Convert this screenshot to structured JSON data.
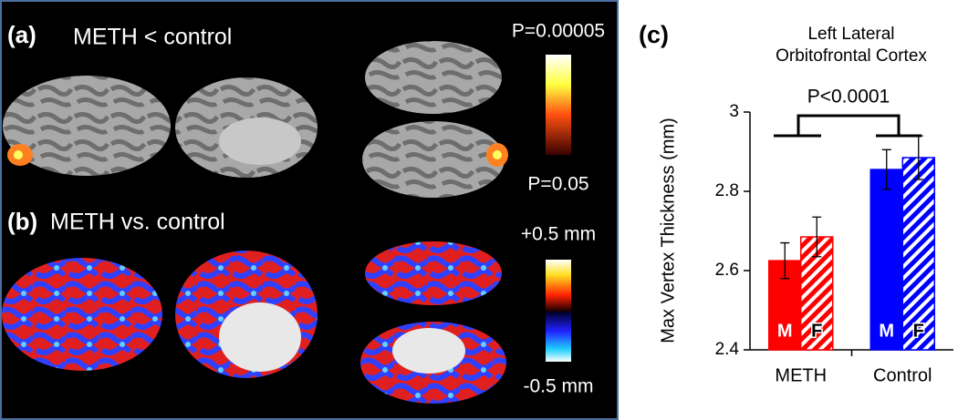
{
  "chart_data": {
    "type": "bar",
    "panel_label": "(c)",
    "title": [
      "Left Lateral",
      "Orbitofrontal Cortex"
    ],
    "y_label": "Max Vertex Thickness (mm)",
    "categories": [
      "METH",
      "Control"
    ],
    "category_colors": [
      "#ff0000",
      "#0000ff"
    ],
    "series": [
      {
        "name": "M",
        "hatch": false,
        "values": [
          2.625,
          2.855
        ],
        "errors": [
          0.045,
          0.05
        ]
      },
      {
        "name": "F",
        "hatch": true,
        "values": [
          2.685,
          2.885
        ],
        "errors": [
          0.05,
          0.055
        ]
      }
    ],
    "ylim": [
      2.4,
      3
    ],
    "yticks": [
      2.4,
      2.6,
      2.8,
      3
    ],
    "annotation": "P<0.0001"
  },
  "brain_panels": {
    "a": {
      "label": "(a)",
      "title": "METH < control",
      "scale_top": "P=0.00005",
      "scale_bottom": "P=0.05"
    },
    "b": {
      "label": "(b)",
      "title": "METH vs. control",
      "scale_top": "+0.5 mm",
      "scale_bottom": "-0.5 mm"
    }
  }
}
